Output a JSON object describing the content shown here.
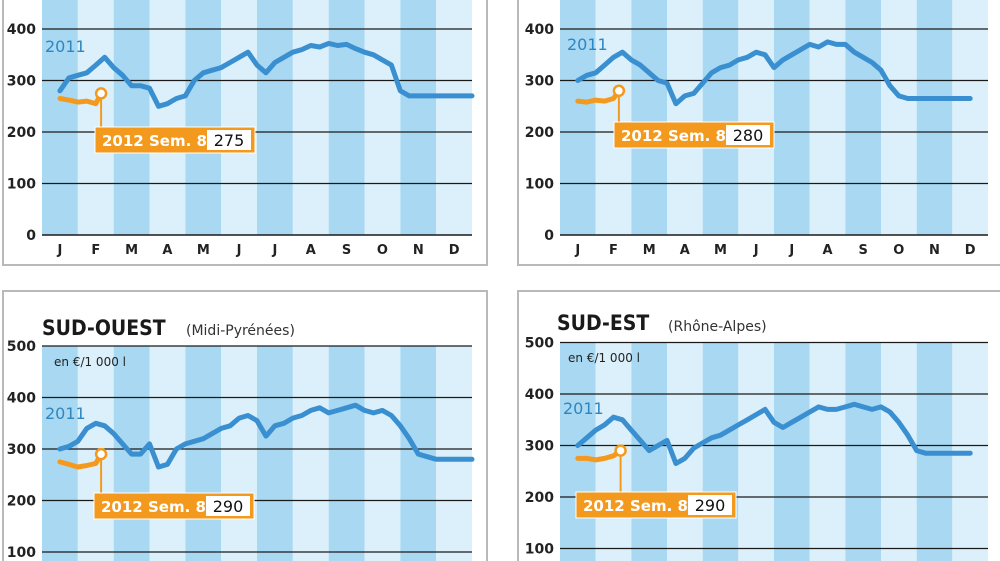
{
  "chart_data": [
    {
      "type": "line",
      "title": "",
      "subtitle": "",
      "unit_label": "",
      "categories": [
        "J",
        "F",
        "M",
        "A",
        "M",
        "J",
        "J",
        "A",
        "S",
        "O",
        "N",
        "D"
      ],
      "ylim": [
        0,
        500
      ],
      "yticks": [
        "0",
        "100",
        "200",
        "300",
        "400"
      ],
      "series": [
        {
          "name": "2011",
          "color": "#3a8fd0",
          "x": [
            0,
            0.25,
            0.5,
            0.75,
            1,
            1.25,
            1.5,
            1.75,
            2,
            2.25,
            2.5,
            2.75,
            3,
            3.25,
            3.5,
            3.75,
            4,
            4.25,
            4.5,
            4.75,
            5,
            5.25,
            5.5,
            5.75,
            6,
            6.25,
            6.5,
            6.75,
            7,
            7.25,
            7.5,
            7.75,
            8,
            8.25,
            8.5,
            8.75,
            9,
            9.25,
            9.5,
            9.75,
            10,
            10.25,
            10.5,
            10.75,
            11,
            11.25,
            11.5
          ],
          "values": [
            280,
            305,
            310,
            315,
            330,
            345,
            325,
            310,
            290,
            290,
            285,
            250,
            255,
            265,
            270,
            300,
            315,
            320,
            325,
            335,
            345,
            355,
            330,
            315,
            335,
            345,
            355,
            360,
            368,
            365,
            372,
            368,
            370,
            362,
            355,
            350,
            340,
            330,
            280,
            270,
            270,
            270,
            270,
            270,
            270,
            270,
            270
          ]
        },
        {
          "name": "2012",
          "color": "#f39a1e",
          "x": [
            0,
            0.25,
            0.5,
            0.75,
            1,
            1.15
          ],
          "values": [
            265,
            262,
            258,
            260,
            255,
            275
          ]
        }
      ],
      "annotation": {
        "label": "2012 Sem. 8",
        "value": "275"
      }
    },
    {
      "type": "line",
      "title": "",
      "subtitle": "",
      "unit_label": "",
      "categories": [
        "J",
        "F",
        "M",
        "A",
        "M",
        "J",
        "J",
        "A",
        "S",
        "O",
        "N",
        "D"
      ],
      "ylim": [
        0,
        500
      ],
      "yticks": [
        "0",
        "100",
        "200",
        "300",
        "400"
      ],
      "series": [
        {
          "name": "2011",
          "color": "#3a8fd0",
          "x": [
            0,
            0.25,
            0.5,
            0.75,
            1,
            1.25,
            1.5,
            1.75,
            2,
            2.25,
            2.5,
            2.75,
            3,
            3.25,
            3.5,
            3.75,
            4,
            4.25,
            4.5,
            4.75,
            5,
            5.25,
            5.5,
            5.75,
            6,
            6.25,
            6.5,
            6.75,
            7,
            7.25,
            7.5,
            7.75,
            8,
            8.25,
            8.5,
            8.75,
            9,
            9.25,
            9.5,
            9.75,
            10,
            10.25,
            10.5,
            10.75,
            11
          ],
          "values": [
            300,
            310,
            315,
            330,
            345,
            355,
            340,
            330,
            315,
            300,
            295,
            255,
            270,
            275,
            295,
            315,
            325,
            330,
            340,
            345,
            355,
            350,
            325,
            340,
            350,
            360,
            370,
            365,
            375,
            370,
            370,
            355,
            345,
            335,
            320,
            290,
            270,
            265,
            265,
            265,
            265,
            265,
            265,
            265,
            265
          ]
        },
        {
          "name": "2012",
          "color": "#f39a1e",
          "x": [
            0,
            0.25,
            0.5,
            0.75,
            1,
            1.15
          ],
          "values": [
            260,
            258,
            262,
            260,
            265,
            280
          ]
        }
      ],
      "annotation": {
        "label": "2012 Sem. 8",
        "value": "280"
      }
    },
    {
      "type": "line",
      "title": "SUD-OUEST",
      "subtitle": "(Midi-Pyrénées)",
      "unit_label": "en €/1 000 l",
      "categories": [
        "J",
        "F",
        "M",
        "A",
        "M",
        "J",
        "J",
        "A",
        "S",
        "O",
        "N",
        "D"
      ],
      "ylim": [
        0,
        500
      ],
      "yticks": [
        "100",
        "200",
        "300",
        "400",
        "500"
      ],
      "series": [
        {
          "name": "2011",
          "color": "#3a8fd0",
          "x": [
            0,
            0.25,
            0.5,
            0.75,
            1,
            1.25,
            1.5,
            1.75,
            2,
            2.25,
            2.5,
            2.75,
            3,
            3.25,
            3.5,
            3.75,
            4,
            4.25,
            4.5,
            4.75,
            5,
            5.25,
            5.5,
            5.75,
            6,
            6.25,
            6.5,
            6.75,
            7,
            7.25,
            7.5,
            7.75,
            8,
            8.25,
            8.5,
            8.75,
            9,
            9.25,
            9.5,
            9.75,
            10,
            10.25,
            10.5,
            10.75,
            11,
            11.25,
            11.5
          ],
          "values": [
            300,
            305,
            315,
            340,
            350,
            345,
            330,
            310,
            290,
            290,
            310,
            265,
            270,
            300,
            310,
            315,
            320,
            330,
            340,
            345,
            360,
            365,
            355,
            325,
            345,
            350,
            360,
            365,
            375,
            380,
            370,
            375,
            380,
            385,
            375,
            370,
            375,
            365,
            345,
            320,
            290,
            285,
            280,
            280,
            280,
            280,
            280
          ]
        },
        {
          "name": "2012",
          "color": "#f39a1e",
          "x": [
            0,
            0.25,
            0.5,
            0.75,
            1,
            1.15
          ],
          "values": [
            275,
            270,
            265,
            268,
            272,
            290
          ]
        }
      ],
      "annotation": {
        "label": "2012 Sem. 8",
        "value": "290"
      }
    },
    {
      "type": "line",
      "title": "SUD-EST",
      "subtitle": "(Rhône-Alpes)",
      "unit_label": "en €/1 000 l",
      "categories": [
        "J",
        "F",
        "M",
        "A",
        "M",
        "J",
        "J",
        "A",
        "S",
        "O",
        "N",
        "D"
      ],
      "ylim": [
        0,
        500
      ],
      "yticks": [
        "100",
        "200",
        "300",
        "400",
        "500"
      ],
      "series": [
        {
          "name": "2011",
          "color": "#3a8fd0",
          "x": [
            0,
            0.25,
            0.5,
            0.75,
            1,
            1.25,
            1.5,
            1.75,
            2,
            2.25,
            2.5,
            2.75,
            3,
            3.25,
            3.5,
            3.75,
            4,
            4.25,
            4.5,
            4.75,
            5,
            5.25,
            5.5,
            5.75,
            6,
            6.25,
            6.5,
            6.75,
            7,
            7.25,
            7.5,
            7.75,
            8,
            8.25,
            8.5,
            8.75,
            9,
            9.25,
            9.5,
            9.75,
            10,
            10.25,
            10.5,
            10.75,
            11
          ],
          "values": [
            300,
            315,
            330,
            340,
            355,
            350,
            330,
            310,
            290,
            300,
            310,
            265,
            275,
            295,
            305,
            315,
            320,
            330,
            340,
            350,
            360,
            370,
            345,
            335,
            345,
            355,
            365,
            375,
            370,
            370,
            375,
            380,
            375,
            370,
            375,
            365,
            345,
            320,
            290,
            285,
            285,
            285,
            285,
            285,
            285
          ]
        },
        {
          "name": "2012",
          "color": "#f39a1e",
          "x": [
            0,
            0.25,
            0.5,
            0.75,
            1,
            1.2
          ],
          "values": [
            275,
            275,
            272,
            275,
            280,
            290
          ]
        }
      ],
      "annotation": {
        "label": "2012 Sem. 8",
        "value": "290"
      }
    }
  ]
}
